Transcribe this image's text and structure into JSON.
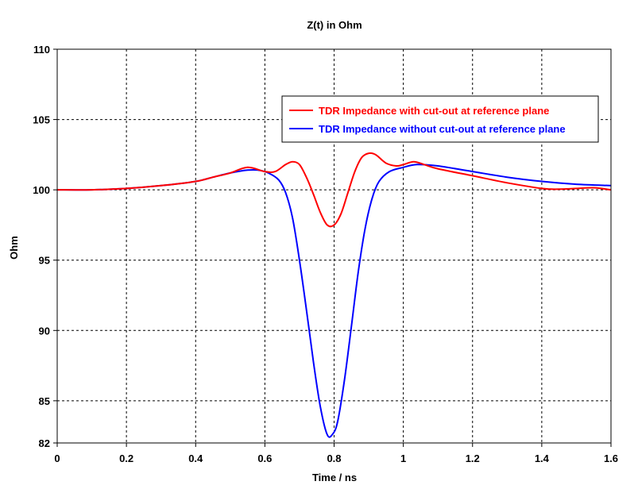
{
  "chart_data": {
    "type": "line",
    "title": "Z(t) in Ohm",
    "xlabel": "Time / ns",
    "ylabel": "Ohm",
    "xlim": [
      0,
      1.6
    ],
    "ylim": [
      82,
      110
    ],
    "x_ticks": [
      "0",
      "0.2",
      "0.4",
      "0.6",
      "0.8",
      "1",
      "1.2",
      "1.4",
      "1.6"
    ],
    "y_ticks": [
      "82",
      "85",
      "90",
      "95",
      "100",
      "105",
      "110"
    ],
    "x_tick_values": [
      0,
      0.2,
      0.4,
      0.6,
      0.8,
      1.0,
      1.2,
      1.4,
      1.6
    ],
    "y_tick_values": [
      82,
      85,
      90,
      95,
      100,
      105,
      110
    ],
    "y_grid_values": [
      85,
      90,
      95,
      100,
      105
    ],
    "grid": true,
    "legend_position": "top-right",
    "series": [
      {
        "name": "TDR Impedance with cut-out at reference plane",
        "color": "#ff0000",
        "points": [
          [
            0.0,
            100.0
          ],
          [
            0.1,
            100.0
          ],
          [
            0.2,
            100.1
          ],
          [
            0.3,
            100.3
          ],
          [
            0.4,
            100.6
          ],
          [
            0.45,
            100.9
          ],
          [
            0.5,
            101.2
          ],
          [
            0.55,
            101.6
          ],
          [
            0.6,
            101.3
          ],
          [
            0.63,
            101.3
          ],
          [
            0.66,
            101.8
          ],
          [
            0.68,
            102.0
          ],
          [
            0.7,
            101.8
          ],
          [
            0.72,
            100.9
          ],
          [
            0.74,
            99.7
          ],
          [
            0.76,
            98.4
          ],
          [
            0.78,
            97.5
          ],
          [
            0.8,
            97.5
          ],
          [
            0.82,
            98.3
          ],
          [
            0.84,
            99.8
          ],
          [
            0.86,
            101.3
          ],
          [
            0.88,
            102.3
          ],
          [
            0.9,
            102.6
          ],
          [
            0.92,
            102.5
          ],
          [
            0.95,
            101.9
          ],
          [
            0.98,
            101.7
          ],
          [
            1.0,
            101.8
          ],
          [
            1.03,
            102.0
          ],
          [
            1.06,
            101.8
          ],
          [
            1.1,
            101.5
          ],
          [
            1.2,
            101.0
          ],
          [
            1.3,
            100.5
          ],
          [
            1.4,
            100.1
          ],
          [
            1.45,
            100.05
          ],
          [
            1.5,
            100.1
          ],
          [
            1.55,
            100.15
          ],
          [
            1.6,
            100.0
          ]
        ]
      },
      {
        "name": "TDR Impedance without cut-out at reference plane",
        "color": "#0000ff",
        "points": [
          [
            0.0,
            100.0
          ],
          [
            0.1,
            100.0
          ],
          [
            0.2,
            100.1
          ],
          [
            0.3,
            100.3
          ],
          [
            0.4,
            100.6
          ],
          [
            0.45,
            100.9
          ],
          [
            0.5,
            101.2
          ],
          [
            0.55,
            101.4
          ],
          [
            0.58,
            101.4
          ],
          [
            0.61,
            101.2
          ],
          [
            0.64,
            100.7
          ],
          [
            0.66,
            99.8
          ],
          [
            0.68,
            98.0
          ],
          [
            0.7,
            95.0
          ],
          [
            0.72,
            91.5
          ],
          [
            0.74,
            87.8
          ],
          [
            0.76,
            84.6
          ],
          [
            0.78,
            82.6
          ],
          [
            0.795,
            82.6
          ],
          [
            0.81,
            83.5
          ],
          [
            0.83,
            86.5
          ],
          [
            0.85,
            90.3
          ],
          [
            0.87,
            94.2
          ],
          [
            0.89,
            97.3
          ],
          [
            0.91,
            99.4
          ],
          [
            0.93,
            100.6
          ],
          [
            0.96,
            101.3
          ],
          [
            1.0,
            101.6
          ],
          [
            1.04,
            101.8
          ],
          [
            1.1,
            101.7
          ],
          [
            1.2,
            101.3
          ],
          [
            1.3,
            100.9
          ],
          [
            1.4,
            100.6
          ],
          [
            1.5,
            100.4
          ],
          [
            1.6,
            100.3
          ]
        ]
      }
    ]
  }
}
